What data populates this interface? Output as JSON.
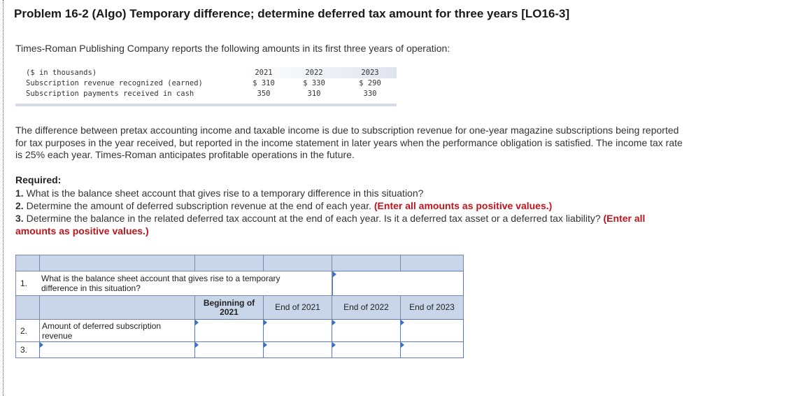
{
  "title": "Problem 16-2 (Algo) Temporary difference; determine deferred tax amount for three years [LO16-3]",
  "intro": "Times-Roman Publishing Company reports the following amounts in its first three years of operation:",
  "data_table": {
    "unit_label": "($ in thousands)",
    "years": [
      "2021",
      "2022",
      "2023"
    ],
    "rows": [
      {
        "label": "Subscription revenue recognized (earned)",
        "values": [
          "$ 310",
          "$ 330",
          "$ 290"
        ]
      },
      {
        "label": "Subscription payments received in cash",
        "values": [
          "350",
          "310",
          "330"
        ]
      }
    ]
  },
  "paragraph": "The difference between pretax accounting income and taxable income is due to subscription revenue for one-year magazine subscriptions being reported for tax purposes in the year received, but reported in the income statement in later years when the performance obligation is satisfied. The income tax rate is 25% each year. Times-Roman anticipates profitable operations in the future.",
  "required": {
    "heading": "Required:",
    "items": [
      {
        "num": "1.",
        "text": "What is the balance sheet account that gives rise to a temporary difference in this situation?",
        "note": ""
      },
      {
        "num": "2.",
        "text": "Determine the amount of deferred subscription revenue at the end of each year.",
        "note": "(Enter all amounts as positive values.)"
      },
      {
        "num": "3.",
        "text": "Determine the balance in the related deferred tax account at the end of each year. Is it a deferred tax asset or a deferred tax liability?",
        "note": "(Enter all amounts as positive values.)"
      }
    ]
  },
  "answer_grid": {
    "q1_num": "1.",
    "q1_text": "What is the balance sheet account that gives rise to a temporary difference in this situation?",
    "q1_value": "",
    "headers": [
      "Beginning of 2021",
      "End of 2021",
      "End of 2022",
      "End of 2023"
    ],
    "row2_num": "2.",
    "row2_label": "Amount of deferred subscription revenue",
    "row2_values": [
      "",
      "",
      "",
      ""
    ],
    "row3_num": "3.",
    "row3_label_value": "",
    "row3_values": [
      "",
      "",
      "",
      ""
    ]
  }
}
